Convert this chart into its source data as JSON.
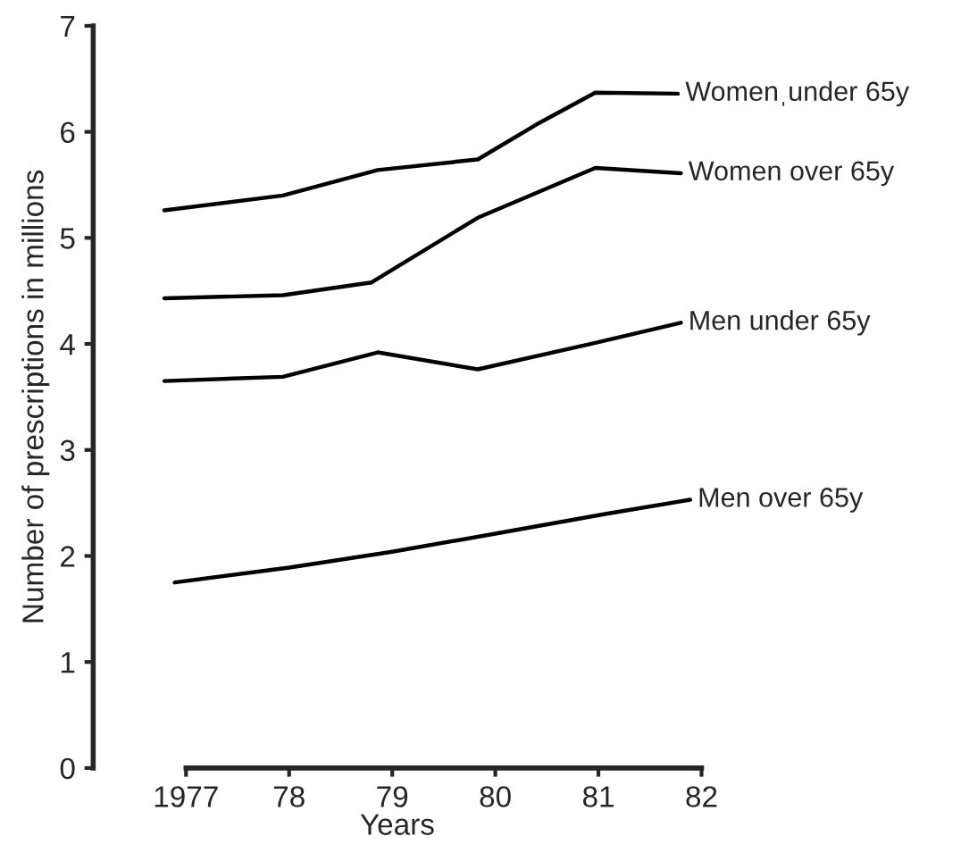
{
  "chart_data": {
    "type": "line",
    "xlabel": "Years",
    "ylabel": "Number of prescriptions in millions",
    "xlim": [
      1976.1,
      1982
    ],
    "ylim": [
      0,
      7
    ],
    "xticks": [
      {
        "value": 1977,
        "label": "1977"
      },
      {
        "value": 1978,
        "label": "78"
      },
      {
        "value": 1979,
        "label": "79"
      },
      {
        "value": 1980,
        "label": "80"
      },
      {
        "value": 1981,
        "label": "81"
      },
      {
        "value": 1982,
        "label": "82"
      }
    ],
    "yticks": [
      0,
      1,
      2,
      3,
      4,
      5,
      6,
      7
    ],
    "grid": false,
    "legend": false,
    "marker": "none",
    "line_style": "solid",
    "series": [
      {
        "name": "Womenˌunder 65y",
        "color": "#000000",
        "x": [
          1976.79,
          1977.94,
          1978.86,
          1979.83,
          1980.4,
          1980.97,
          1981.77
        ],
        "values": [
          5.26,
          5.4,
          5.64,
          5.74,
          6.07,
          6.37,
          6.36
        ]
      },
      {
        "name": "Women over 65y",
        "color": "#000000",
        "x": [
          1976.79,
          1977.94,
          1978.8,
          1979.83,
          1980.97,
          1981.8
        ],
        "values": [
          4.43,
          4.46,
          4.58,
          5.19,
          5.66,
          5.61
        ]
      },
      {
        "name": "Men under 65y",
        "color": "#000000",
        "x": [
          1976.79,
          1977.94,
          1978.86,
          1979.83,
          1980.97,
          1981.8
        ],
        "values": [
          3.65,
          3.69,
          3.92,
          3.76,
          4.01,
          4.2
        ]
      },
      {
        "name": "Men over 65y",
        "color": "#000000",
        "x": [
          1976.89,
          1978.0,
          1979.0,
          1980.0,
          1981.09,
          1981.89
        ],
        "values": [
          1.75,
          1.89,
          2.04,
          2.21,
          2.4,
          2.53
        ]
      }
    ]
  }
}
